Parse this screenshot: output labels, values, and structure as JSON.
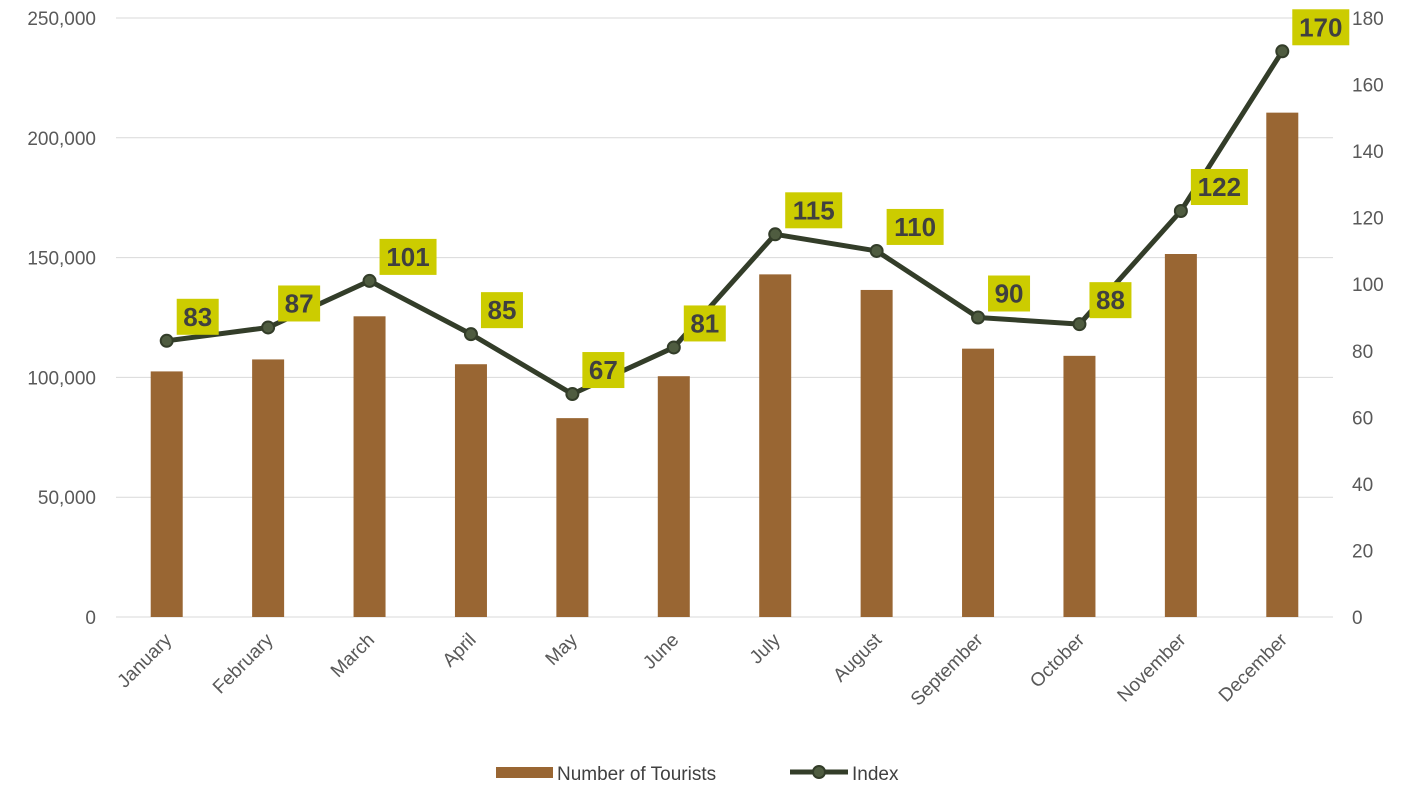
{
  "chart_data": {
    "type": "bar",
    "categories": [
      "January",
      "February",
      "March",
      "April",
      "May",
      "June",
      "July",
      "August",
      "September",
      "October",
      "November",
      "December"
    ],
    "series": [
      {
        "name": "Number of Tourists",
        "kind": "bar",
        "axis": "left",
        "color": "#996633",
        "values": [
          102500,
          107500,
          125500,
          105500,
          83000,
          100500,
          143000,
          136500,
          112000,
          109000,
          151500,
          210500
        ]
      },
      {
        "name": "Index",
        "kind": "line",
        "axis": "right",
        "color": "#333d29",
        "marker_color": "#4f5c40",
        "values": [
          83,
          87,
          101,
          85,
          67,
          81,
          115,
          110,
          90,
          88,
          122,
          170
        ],
        "data_labels": [
          "83",
          "87",
          "101",
          "85",
          "67",
          "81",
          "115",
          "110",
          "90",
          "88",
          "122",
          "170"
        ],
        "label_background": "#cccc00"
      }
    ],
    "y_left": {
      "ylim": [
        0,
        250000
      ],
      "ticks": [
        0,
        50000,
        100000,
        150000,
        200000,
        250000
      ],
      "tick_labels": [
        "0",
        "50,000",
        "100,000",
        "150,000",
        "200,000",
        "250,000"
      ]
    },
    "y_right": {
      "ylim": [
        0,
        180
      ],
      "ticks": [
        0,
        20,
        40,
        60,
        80,
        100,
        120,
        140,
        160,
        180
      ],
      "tick_labels": [
        "0",
        "20",
        "40",
        "60",
        "80",
        "100",
        "120",
        "140",
        "160",
        "180"
      ]
    },
    "grid": true,
    "grid_color": "#d9d9d9",
    "legend": "bottom",
    "title": "",
    "xlabel": "",
    "ylabel": ""
  }
}
